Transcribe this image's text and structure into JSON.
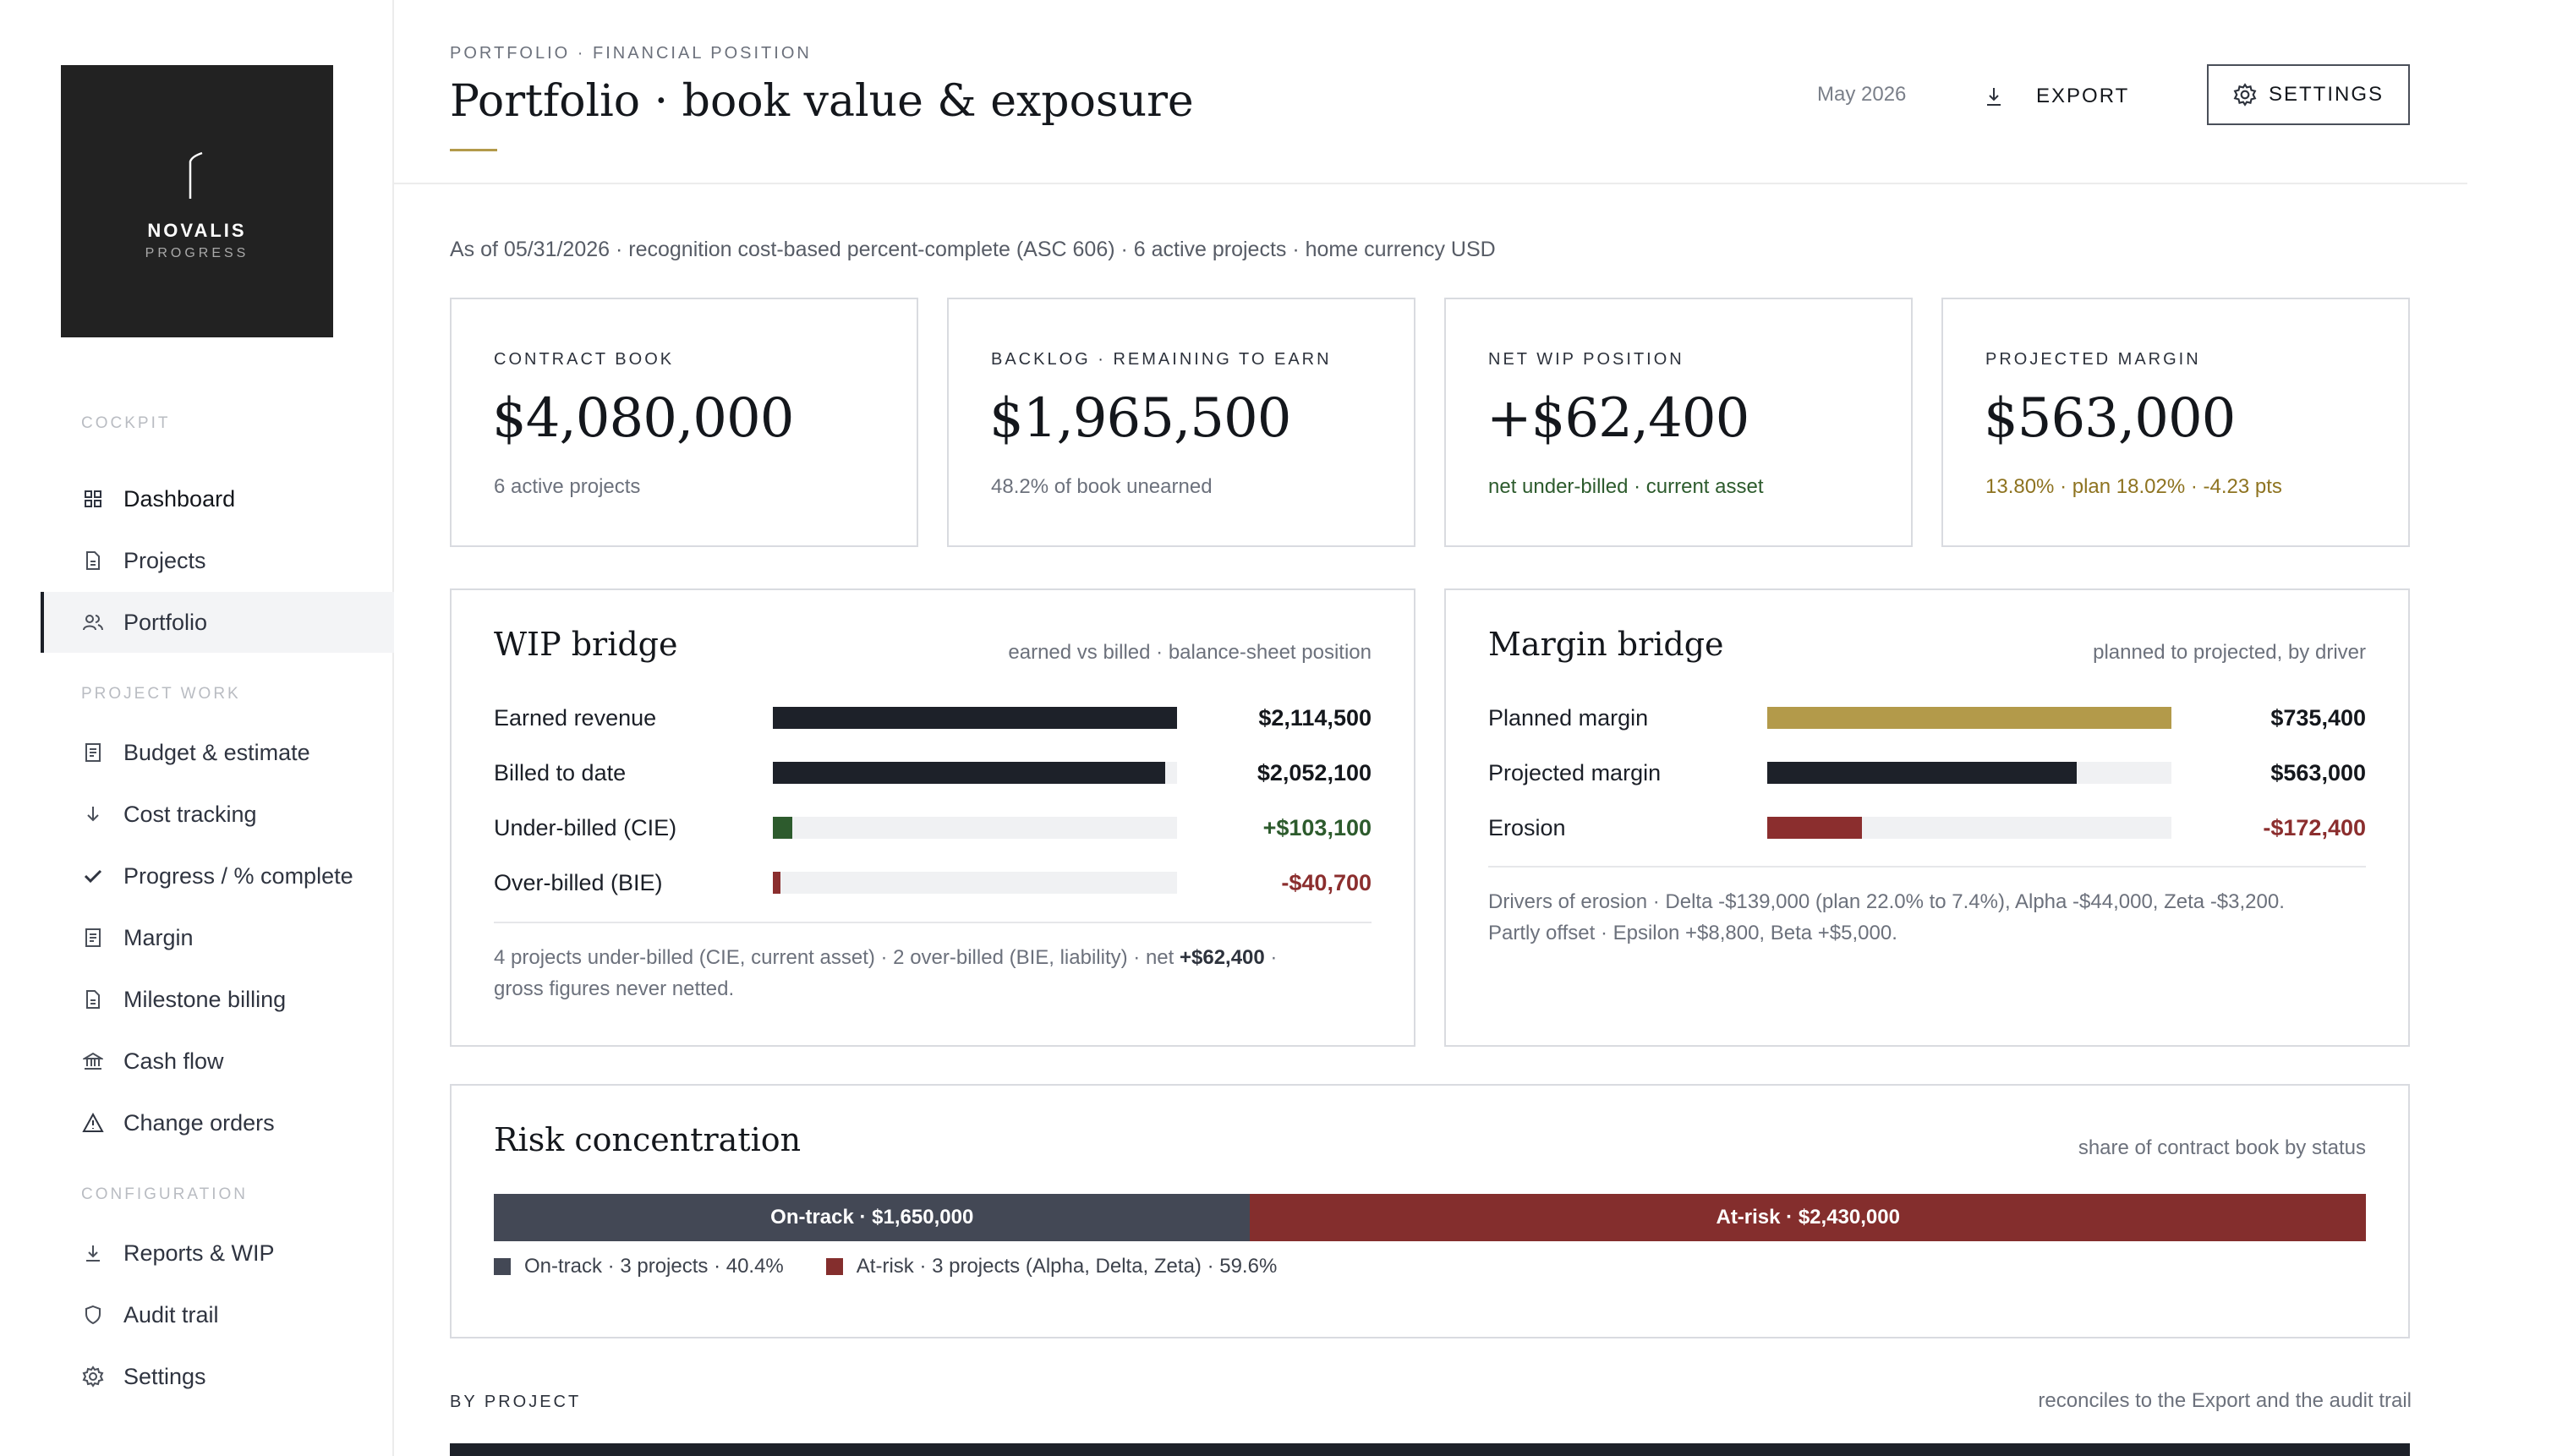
{
  "brand": {
    "name": "NOVALIS",
    "sub": "PROGRESS"
  },
  "sidebar": {
    "sections": [
      {
        "label": "COCKPIT"
      },
      {
        "label": "PROJECT WORK"
      },
      {
        "label": "CONFIGURATION"
      }
    ],
    "items": [
      {
        "label": "Dashboard",
        "icon": "grid-icon"
      },
      {
        "label": "Projects",
        "icon": "document-icon"
      },
      {
        "label": "Portfolio",
        "icon": "users-icon",
        "active": true
      },
      {
        "label": "Budget & estimate",
        "icon": "list-icon"
      },
      {
        "label": "Cost tracking",
        "icon": "arrow-down-icon"
      },
      {
        "label": "Progress / % complete",
        "icon": "check-icon"
      },
      {
        "label": "Margin",
        "icon": "list-icon"
      },
      {
        "label": "Milestone billing",
        "icon": "document-icon"
      },
      {
        "label": "Cash flow",
        "icon": "bank-icon"
      },
      {
        "label": "Change orders",
        "icon": "warning-icon"
      },
      {
        "label": "Reports & WIP",
        "icon": "download-icon"
      },
      {
        "label": "Audit trail",
        "icon": "shield-icon"
      },
      {
        "label": "Settings",
        "icon": "gear-icon"
      }
    ]
  },
  "header": {
    "eyebrow": "PORTFOLIO · FINANCIAL POSITION",
    "title": "Portfolio · book value & exposure",
    "period": "May 2026",
    "export_label": "EXPORT",
    "settings_label": "SETTINGS"
  },
  "asof": "As of 05/31/2026 · recognition cost-based percent-complete (ASC 606) · 6 active projects · home currency USD",
  "kpis": [
    {
      "label": "CONTRACT BOOK",
      "value": "$4,080,000",
      "sub": "6 active projects"
    },
    {
      "label": "BACKLOG · REMAINING TO EARN",
      "value": "$1,965,500",
      "sub": "48.2% of book unearned"
    },
    {
      "label": "NET WIP POSITION",
      "value": "+$62,400",
      "sub": "net under-billed · current asset"
    },
    {
      "label": "PROJECTED MARGIN",
      "value": "$563,000",
      "sub": "13.80% · plan 18.02% · -4.23 pts"
    }
  ],
  "wip": {
    "title": "WIP bridge",
    "note": "earned vs billed · balance-sheet position",
    "rows": [
      {
        "label": "Earned revenue",
        "value": "$2,114,500",
        "fraction": 1.0,
        "color": "#1d2129"
      },
      {
        "label": "Billed to date",
        "value": "$2,052,100",
        "fraction": 0.97,
        "color": "#1d2129"
      },
      {
        "label": "Under-billed (CIE)",
        "value": "+$103,100",
        "fraction": 0.049,
        "color": "#2d5b2d"
      },
      {
        "label": "Over-billed (BIE)",
        "value": "-$40,700",
        "fraction": 0.019,
        "color": "#8b2e2e"
      }
    ],
    "foot_pre": "4 projects under-billed (CIE, current asset) · 2 over-billed (BIE, liability) · net ",
    "foot_bold": "+$62,400",
    "foot_post": " ·",
    "foot_line2": "gross figures never netted."
  },
  "margin": {
    "title": "Margin bridge",
    "note": "planned to projected, by driver",
    "rows": [
      {
        "label": "Planned margin",
        "value": "$735,400",
        "fraction": 1.0,
        "color": "#b39a4a"
      },
      {
        "label": "Projected margin",
        "value": "$563,000",
        "fraction": 0.766,
        "color": "#1d2129"
      },
      {
        "label": "Erosion",
        "value": "-$172,400",
        "fraction": 0.234,
        "color": "#8b2e2e"
      }
    ],
    "foot_line1": "Drivers of erosion · Delta -$139,000 (plan 22.0% to 7.4%), Alpha -$44,000, Zeta -$3,200.",
    "foot_line2": "Partly offset · Epsilon +$8,800, Beta +$5,000."
  },
  "risk": {
    "title": "Risk concentration",
    "note": "share of contract book by status",
    "segments": [
      {
        "label": "On-track · $1,650,000",
        "share": 40.4,
        "color": "#434855"
      },
      {
        "label": "At-risk · $2,430,000",
        "share": 59.6,
        "color": "#842e2d"
      }
    ],
    "legend": [
      {
        "label": "On-track · 3 projects · 40.4%",
        "color": "#434855"
      },
      {
        "label": "At-risk · 3 projects (Alpha, Delta, Zeta) · 59.6%",
        "color": "#842e2d"
      }
    ]
  },
  "by_project": {
    "label": "BY PROJECT",
    "note": "reconciles to the Export and the audit trail"
  }
}
